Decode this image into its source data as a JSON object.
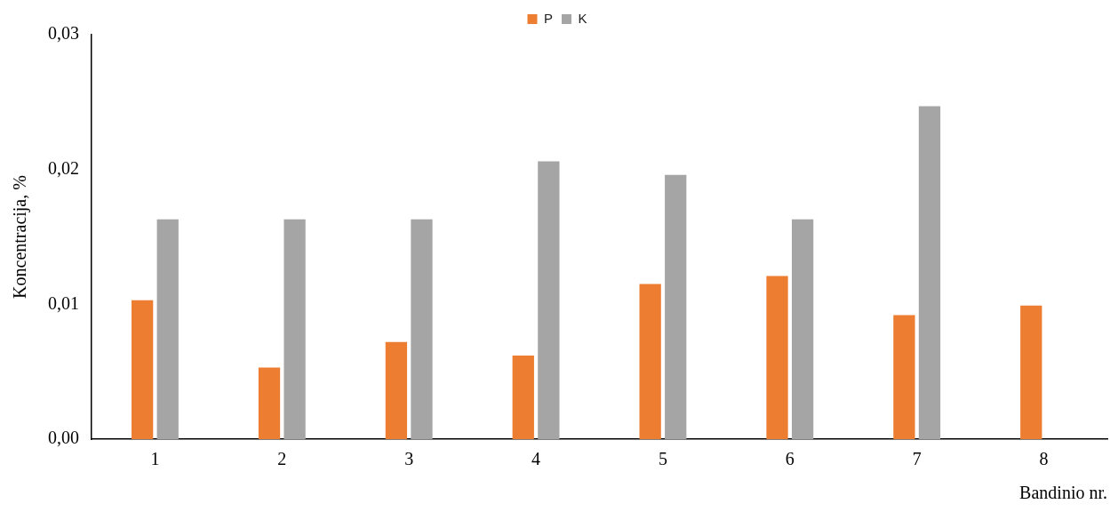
{
  "chart_data": {
    "type": "bar",
    "ylabel": "Koncentracija, %",
    "xlabel": "Bandinio nr.",
    "categories": [
      "1",
      "2",
      "3",
      "4",
      "5",
      "6",
      "7",
      "8"
    ],
    "series": [
      {
        "name": "P",
        "color": "#ed7d31",
        "values": [
          0.0103,
          0.0053,
          0.0072,
          0.0062,
          0.0115,
          0.0121,
          0.0092,
          0.0099
        ]
      },
      {
        "name": "K",
        "color": "#a5a5a5",
        "values": [
          0.0163,
          0.0163,
          0.0163,
          0.0206,
          0.0196,
          0.0163,
          0.0247,
          null
        ]
      }
    ],
    "ylim": [
      0,
      0.03
    ],
    "yticks": [
      {
        "value": 0,
        "label": "0,00"
      },
      {
        "value": 0.01,
        "label": "0,01"
      },
      {
        "value": 0.02,
        "label": "0,02"
      },
      {
        "value": 0.03,
        "label": "0,03"
      }
    ],
    "grid": false,
    "legend": "top"
  }
}
